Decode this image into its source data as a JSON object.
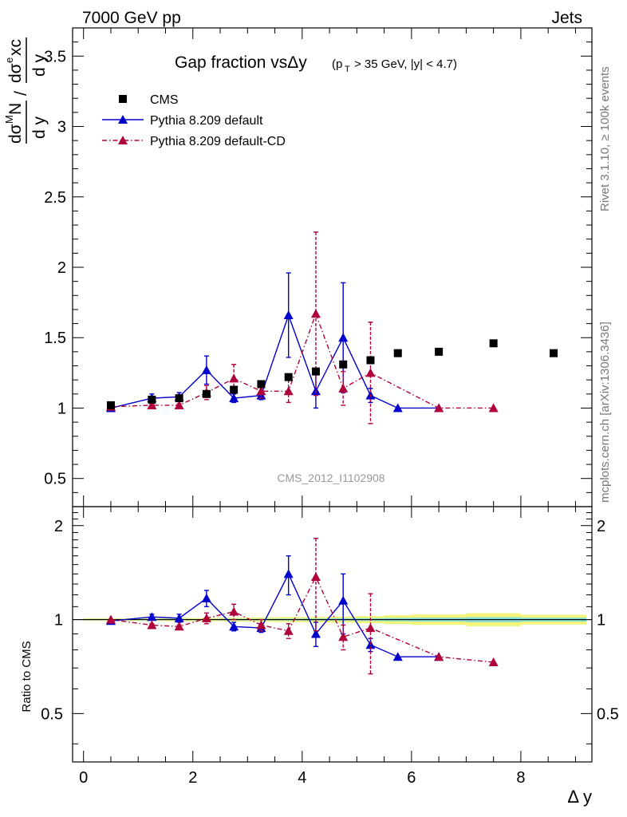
{
  "header": {
    "left": "7000 GeV pp",
    "right": "Jets"
  },
  "title": {
    "main": "Gap fraction vsΔy",
    "cut": "(p_T > 35 GeV, |y| < 4.7)"
  },
  "watermark": "CMS_2012_I1102908",
  "side_labels": {
    "rivet": "Rivet 3.1.10, ≥ 100k events",
    "mcplots": "mcplots.cern.ch [arXiv:1306.3436]"
  },
  "axis_labels": {
    "x": "Δ y",
    "ratio_y": "Ratio to CMS"
  },
  "chart_data": [
    {
      "type": "scatter",
      "panel": "main",
      "xlim": [
        -0.2,
        9.3
      ],
      "ylim": [
        0.3,
        3.7
      ],
      "x_ticks": [
        0,
        2,
        4,
        6,
        8
      ],
      "y_ticks": [
        0.5,
        1,
        1.5,
        2,
        2.5,
        3,
        3.5
      ],
      "y_tick_labels": [
        "0.5",
        "1",
        "1.5",
        "2",
        "2.5",
        "3",
        "3.5"
      ],
      "legend_position": "top-left",
      "series": [
        {
          "name": "CMS",
          "color": "#000000",
          "marker": "square",
          "line": "none",
          "x": [
            0.5,
            1.25,
            1.75,
            2.25,
            2.75,
            3.25,
            3.75,
            4.25,
            4.75,
            5.25,
            5.75,
            6.5,
            7.5,
            8.6
          ],
          "y": [
            1.02,
            1.06,
            1.07,
            1.1,
            1.13,
            1.17,
            1.22,
            1.26,
            1.31,
            1.34,
            1.39,
            1.4,
            1.46,
            1.39
          ],
          "err": [
            0.01,
            0.01,
            0.01,
            0.01,
            0.01,
            0.01,
            0.01,
            0.01,
            0.01,
            0.01,
            0.01,
            0.01,
            0.01,
            0.01
          ]
        },
        {
          "name": "Pythia 8.209 default",
          "color": "#0000cc",
          "marker": "triangle",
          "line": "solid",
          "x": [
            0.5,
            1.25,
            1.75,
            2.25,
            2.75,
            3.25,
            3.75,
            4.25,
            4.75,
            5.25,
            5.75,
            6.5
          ],
          "y": [
            1.0,
            1.07,
            1.08,
            1.27,
            1.07,
            1.09,
            1.66,
            1.12,
            1.5,
            1.09,
            1.0,
            1.0
          ],
          "err": [
            0.0,
            0.03,
            0.03,
            0.1,
            0.03,
            0.03,
            0.3,
            0.12,
            0.39,
            0.05,
            0.0,
            0.0
          ]
        },
        {
          "name": "Pythia 8.209 default-CD",
          "color": "#b0003a",
          "marker": "triangle",
          "line": "dashdot",
          "x": [
            0.5,
            1.25,
            1.75,
            2.25,
            2.75,
            3.25,
            3.75,
            4.25,
            4.75,
            5.25,
            6.5,
            7.5
          ],
          "y": [
            1.01,
            1.02,
            1.02,
            1.11,
            1.21,
            1.12,
            1.12,
            1.67,
            1.14,
            1.25,
            1.0,
            1.0
          ],
          "err": [
            0.0,
            0.01,
            0.01,
            0.05,
            0.1,
            0.05,
            0.08,
            0.58,
            0.12,
            0.36,
            0.0,
            0.0
          ]
        }
      ]
    },
    {
      "type": "scatter",
      "panel": "ratio",
      "ylabel": "Ratio to CMS",
      "xlabel": "Δ y",
      "xlim": [
        -0.2,
        9.3
      ],
      "ylim": [
        0.35,
        2.3
      ],
      "x_ticks": [
        0,
        2,
        4,
        6,
        8
      ],
      "x_tick_labels": [
        "0",
        "2",
        "4",
        "6",
        "8"
      ],
      "y_ticks": [
        0.5,
        1,
        2
      ],
      "y_tick_labels": [
        "0.5",
        "1",
        "2"
      ],
      "reference_line": 1,
      "band": {
        "x_edges": [
          0.0,
          1.0,
          1.5,
          2.0,
          2.5,
          3.0,
          3.5,
          4.0,
          4.5,
          5.0,
          5.5,
          6.0,
          7.0,
          8.0,
          9.2
        ],
        "stat": [
          0.005,
          0.005,
          0.005,
          0.005,
          0.006,
          0.006,
          0.007,
          0.008,
          0.009,
          0.01,
          0.012,
          0.014,
          0.018,
          0.014
        ],
        "total": [
          0.01,
          0.01,
          0.012,
          0.012,
          0.014,
          0.016,
          0.018,
          0.02,
          0.022,
          0.026,
          0.032,
          0.038,
          0.048,
          0.036
        ],
        "stat_color": "#7fdcd8",
        "total_color": "#f4f47a"
      },
      "series": [
        {
          "name": "Pythia 8.209 default",
          "color": "#0000cc",
          "marker": "triangle",
          "line": "solid",
          "x": [
            0.5,
            1.25,
            1.75,
            2.25,
            2.75,
            3.25,
            3.75,
            4.25,
            4.75,
            5.25,
            5.75,
            6.5
          ],
          "y": [
            0.99,
            1.02,
            1.01,
            1.17,
            0.95,
            0.94,
            1.4,
            0.9,
            1.15,
            0.83,
            0.76,
            0.76
          ],
          "err": [
            0.0,
            0.02,
            0.03,
            0.07,
            0.03,
            0.03,
            0.2,
            0.08,
            0.25,
            0.04,
            0.0,
            0.0
          ]
        },
        {
          "name": "Pythia 8.209 default-CD",
          "color": "#b0003a",
          "marker": "triangle",
          "line": "dashdot",
          "x": [
            0.5,
            1.25,
            1.75,
            2.25,
            2.75,
            3.25,
            3.75,
            4.25,
            4.75,
            5.25,
            6.5,
            7.5
          ],
          "y": [
            1.0,
            0.96,
            0.95,
            1.01,
            1.06,
            0.96,
            0.92,
            1.37,
            0.88,
            0.94,
            0.76,
            0.73
          ],
          "err": [
            0.0,
            0.01,
            0.01,
            0.04,
            0.06,
            0.04,
            0.05,
            0.45,
            0.08,
            0.27,
            0.0,
            0.0
          ]
        }
      ]
    }
  ]
}
